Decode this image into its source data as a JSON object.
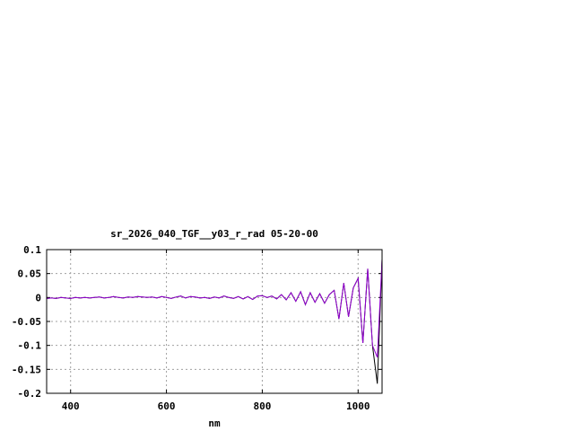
{
  "chart_data": {
    "type": "line",
    "title": "sr_2026_040_TGF__y03_r_rad 05-20-00",
    "xlabel": "nm",
    "ylabel": "",
    "xlim": [
      350,
      1050
    ],
    "ylim": [
      -0.2,
      0.1
    ],
    "xticks": [
      400,
      600,
      800,
      1000
    ],
    "yticks": [
      0.1,
      0.05,
      0,
      -0.05,
      -0.1,
      -0.15,
      -0.2
    ],
    "ytick_labels": [
      "0.1",
      "0.05",
      "0",
      "-0.05",
      "-0.1",
      "-0.15",
      "-0.2"
    ],
    "grid": true,
    "x": [
      350,
      360,
      370,
      380,
      390,
      400,
      410,
      420,
      430,
      440,
      450,
      460,
      470,
      480,
      490,
      500,
      510,
      520,
      530,
      540,
      550,
      560,
      570,
      580,
      590,
      600,
      610,
      620,
      630,
      640,
      650,
      660,
      670,
      680,
      690,
      700,
      710,
      720,
      730,
      740,
      750,
      760,
      770,
      780,
      790,
      800,
      810,
      820,
      830,
      840,
      850,
      860,
      870,
      880,
      890,
      900,
      910,
      920,
      930,
      940,
      950,
      960,
      970,
      980,
      990,
      1000,
      1010,
      1020,
      1030,
      1040,
      1050
    ],
    "series": [
      {
        "color": "#000000",
        "values": [
          -0.002,
          -0.001,
          -0.002,
          0,
          -0.001,
          -0.002,
          0,
          -0.001,
          0,
          -0.001,
          0,
          0.001,
          -0.001,
          0,
          0.002,
          0,
          -0.001,
          0.001,
          0,
          0.002,
          0.001,
          0,
          0.001,
          -0.001,
          0.002,
          0,
          -0.002,
          0.001,
          0.003,
          -0.001,
          0.002,
          0.001,
          -0.001,
          0,
          -0.002,
          0.001,
          -0.001,
          0.003,
          0,
          -0.002,
          0.002,
          -0.003,
          0.002,
          -0.004,
          0.003,
          0.004,
          0,
          0.003,
          -0.003,
          0.006,
          -0.005,
          0.01,
          -0.008,
          0.012,
          -0.015,
          0.01,
          -0.01,
          0.008,
          -0.012,
          0.006,
          0.015,
          -0.045,
          0.03,
          -0.04,
          0.02,
          0.04,
          -0.095,
          0.06,
          -0.1,
          -0.18,
          0.08
        ]
      },
      {
        "color": "#9400d3",
        "values": [
          -0.002,
          -0.001,
          -0.002,
          0,
          -0.001,
          -0.002,
          0,
          -0.001,
          0,
          -0.001,
          0,
          0.001,
          -0.001,
          0,
          0.002,
          0,
          -0.001,
          0.001,
          0,
          0.002,
          0.001,
          0,
          0.001,
          -0.001,
          0.002,
          0,
          -0.002,
          0.001,
          0.003,
          -0.001,
          0.002,
          0.001,
          -0.001,
          0,
          -0.002,
          0.001,
          -0.001,
          0.003,
          0,
          -0.002,
          0.002,
          -0.003,
          0.002,
          -0.004,
          0.003,
          0.004,
          0,
          0.003,
          -0.003,
          0.006,
          -0.005,
          0.01,
          -0.008,
          0.012,
          -0.015,
          0.01,
          -0.01,
          0.008,
          -0.012,
          0.006,
          0.015,
          -0.045,
          0.03,
          -0.04,
          0.02,
          0.04,
          -0.095,
          0.06,
          -0.1,
          -0.125,
          0.08
        ]
      }
    ]
  }
}
